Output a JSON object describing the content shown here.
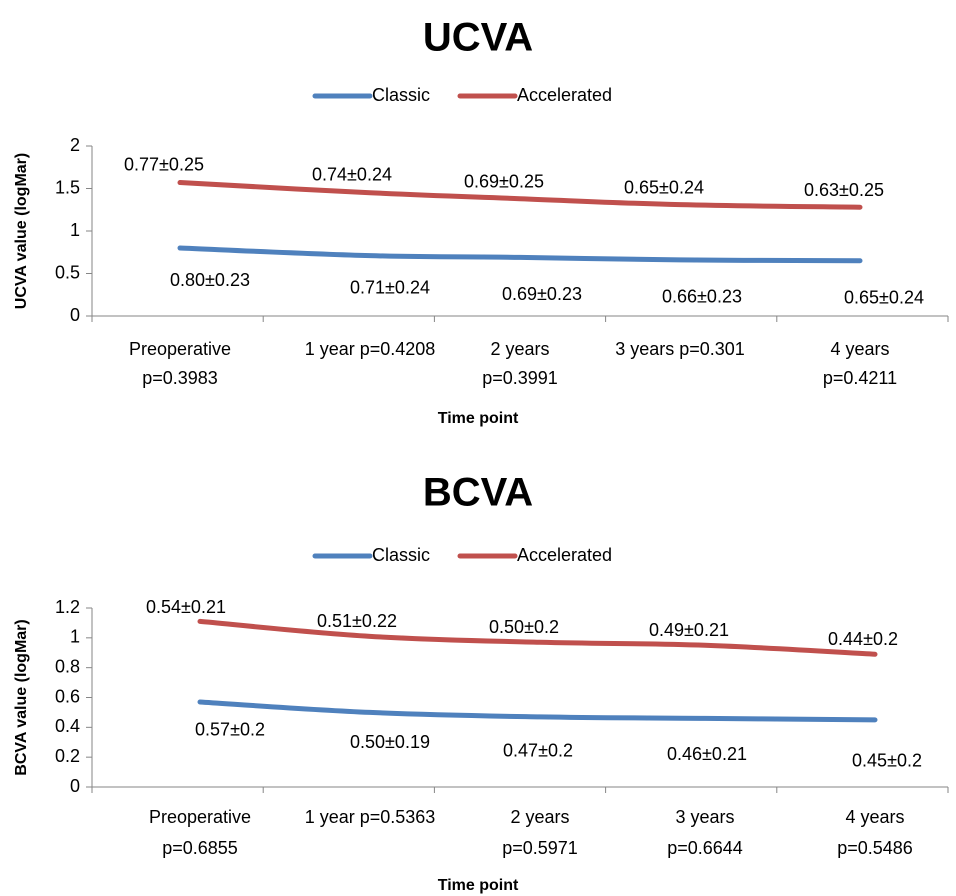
{
  "chart_data": [
    {
      "type": "line",
      "title": "UCVA",
      "xlabel": "Time point",
      "ylabel": "UCVA value (logMar)",
      "ylim": [
        0,
        2
      ],
      "yticks": [
        "0",
        "0.5",
        "1",
        "1.5",
        "2"
      ],
      "yticks_values": [
        0,
        0.5,
        1,
        1.5,
        2
      ],
      "legend_position": "top",
      "categories": [
        [
          "Preoperative",
          "p=0.3983"
        ],
        [
          "1 year p=0.4208"
        ],
        [
          "2 years",
          "p=0.3991"
        ],
        [
          "3 years p=0.301"
        ],
        [
          "4 years",
          "p=0.4211"
        ]
      ],
      "series": [
        {
          "name": "Classic",
          "color": "#4F81BD",
          "values": [
            0.8,
            0.71,
            0.69,
            0.66,
            0.65
          ],
          "labels": [
            "0.80±0.23",
            "0.71±0.24",
            "0.69±0.23",
            "0.66±0.23",
            "0.65±0.24"
          ]
        },
        {
          "name": "Accelerated",
          "color": "#C0504D",
          "values": [
            1.57,
            1.45,
            1.38,
            1.31,
            1.28
          ],
          "labels": [
            "0.77±0.25",
            "0.74±0.24",
            "0.69±0.25",
            "0.65±0.24",
            "0.63±0.25"
          ]
        }
      ]
    },
    {
      "type": "line",
      "title": "BCVA",
      "xlabel": "Time point",
      "ylabel": "BCVA value (logMar)",
      "ylim": [
        0,
        1.2
      ],
      "yticks": [
        "0",
        "0.2",
        "0.4",
        "0.6",
        "0.8",
        "1",
        "1.2"
      ],
      "yticks_values": [
        0,
        0.2,
        0.4,
        0.6,
        0.8,
        1,
        1.2
      ],
      "legend_position": "top",
      "categories": [
        [
          "Preoperative",
          "p=0.6855"
        ],
        [
          "1 year p=0.5363"
        ],
        [
          "2 years",
          "p=0.5971"
        ],
        [
          "3 years",
          "p=0.6644"
        ],
        [
          "4 years",
          "p=0.5486"
        ]
      ],
      "series": [
        {
          "name": "Classic",
          "color": "#4F81BD",
          "values": [
            0.57,
            0.5,
            0.47,
            0.46,
            0.45
          ],
          "labels": [
            "0.57±0.2",
            "0.50±0.19",
            "0.47±0.2",
            "0.46±0.21",
            "0.45±0.2"
          ]
        },
        {
          "name": "Accelerated",
          "color": "#C0504D",
          "values": [
            1.11,
            1.01,
            0.97,
            0.95,
            0.89
          ],
          "labels": [
            "0.54±0.21",
            "0.51±0.22",
            "0.50±0.2",
            "0.49±0.21",
            "0.44±0.2"
          ]
        }
      ]
    }
  ]
}
